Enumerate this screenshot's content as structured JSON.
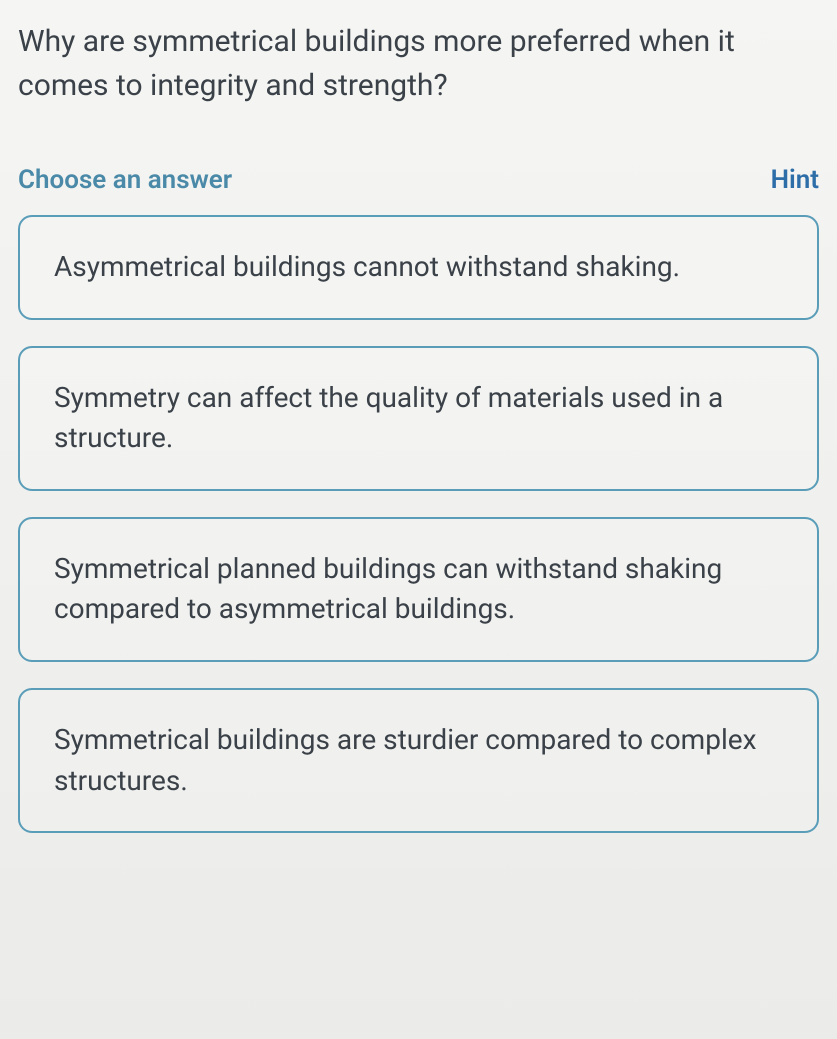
{
  "question": {
    "text": "Why are symmetrical buildings more preferred when it comes to integrity and strength?"
  },
  "prompt": {
    "choose_label": "Choose an answer",
    "hint_label": "Hint"
  },
  "answers": [
    {
      "text": "Asymmetrical buildings cannot withstand shaking."
    },
    {
      "text": "Symmetry can affect the quality of materials used in a structure."
    },
    {
      "text": "Symmetrical planned buildings can withstand shaking compared to asymmetrical buildings."
    },
    {
      "text": "Symmetrical buildings are sturdier compared to complex structures."
    }
  ],
  "styles": {
    "border_color": "#5a9db8",
    "text_color": "#3a4148",
    "hint_color": "#2d6ea8",
    "choose_color": "#4a8aa8",
    "background_gradient_top": "#f5f5f3",
    "background_gradient_bottom": "#ebebe9"
  }
}
